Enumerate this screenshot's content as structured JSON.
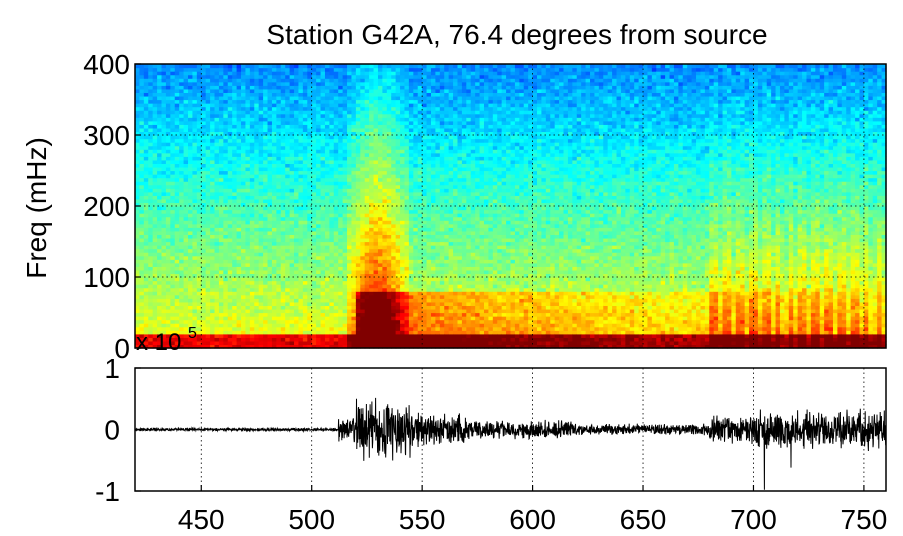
{
  "chart_data": [
    {
      "type": "heatmap",
      "title": "Station G42A, 76.4 degrees from source",
      "ylabel": "Freq (mHz)",
      "xlim": [
        420,
        760
      ],
      "ylim": [
        0,
        400
      ],
      "yticks": [
        0,
        100,
        200,
        300,
        400
      ],
      "grid": true,
      "colormap": "jet",
      "colors": {
        "low": "#1e50c8",
        "mid_low": "#2ab8e0",
        "mid": "#f0f050",
        "high": "#e63010",
        "max": "#c80000"
      },
      "description_bands": [
        {
          "x_range": [
            420,
            515
          ],
          "note": "pre-arrival noise, energy concentrated below 20 mHz"
        },
        {
          "x_range": [
            515,
            545
          ],
          "note": "strong broadband arrival up to ~330 mHz"
        },
        {
          "x_range": [
            545,
            680
          ],
          "note": "coda, energy mostly below 100 mHz"
        },
        {
          "x_range": [
            680,
            760
          ],
          "note": "later arrivals, vertical streaks up to ~150 mHz"
        }
      ]
    },
    {
      "type": "line",
      "series": [
        {
          "segments": [
            {
              "x_range": [
                420,
                512
              ],
              "amplitude": 0.02
            },
            {
              "x_range": [
                512,
                520
              ],
              "amplitude": 0.15
            },
            {
              "x_range": [
                520,
                530
              ],
              "amplitude": 0.42
            },
            {
              "x_range": [
                530,
                545
              ],
              "amplitude": 0.38
            },
            {
              "x_range": [
                545,
                570
              ],
              "amplitude": 0.22
            },
            {
              "x_range": [
                570,
                620
              ],
              "amplitude": 0.12
            },
            {
              "x_range": [
                620,
                680
              ],
              "amplitude": 0.07
            },
            {
              "x_range": [
                680,
                700
              ],
              "amplitude": 0.18
            },
            {
              "x_range": [
                700,
                760
              ],
              "amplitude": 0.25
            }
          ],
          "spikes": [
            {
              "x": 705,
              "min": -0.98,
              "max": 0.75
            },
            {
              "x": 717,
              "min": -0.62,
              "max": 0.45
            },
            {
              "x": 752,
              "min": -0.35,
              "max": 0.52
            }
          ]
        }
      ],
      "xlim": [
        420,
        760
      ],
      "ylim": [
        -1,
        1
      ],
      "xticks": [
        450,
        500,
        550,
        600,
        650,
        700,
        750
      ],
      "yticks": [
        -1,
        0,
        1
      ],
      "multiplier_label": "x 10",
      "multiplier_exponent": "5",
      "grid": true
    }
  ]
}
